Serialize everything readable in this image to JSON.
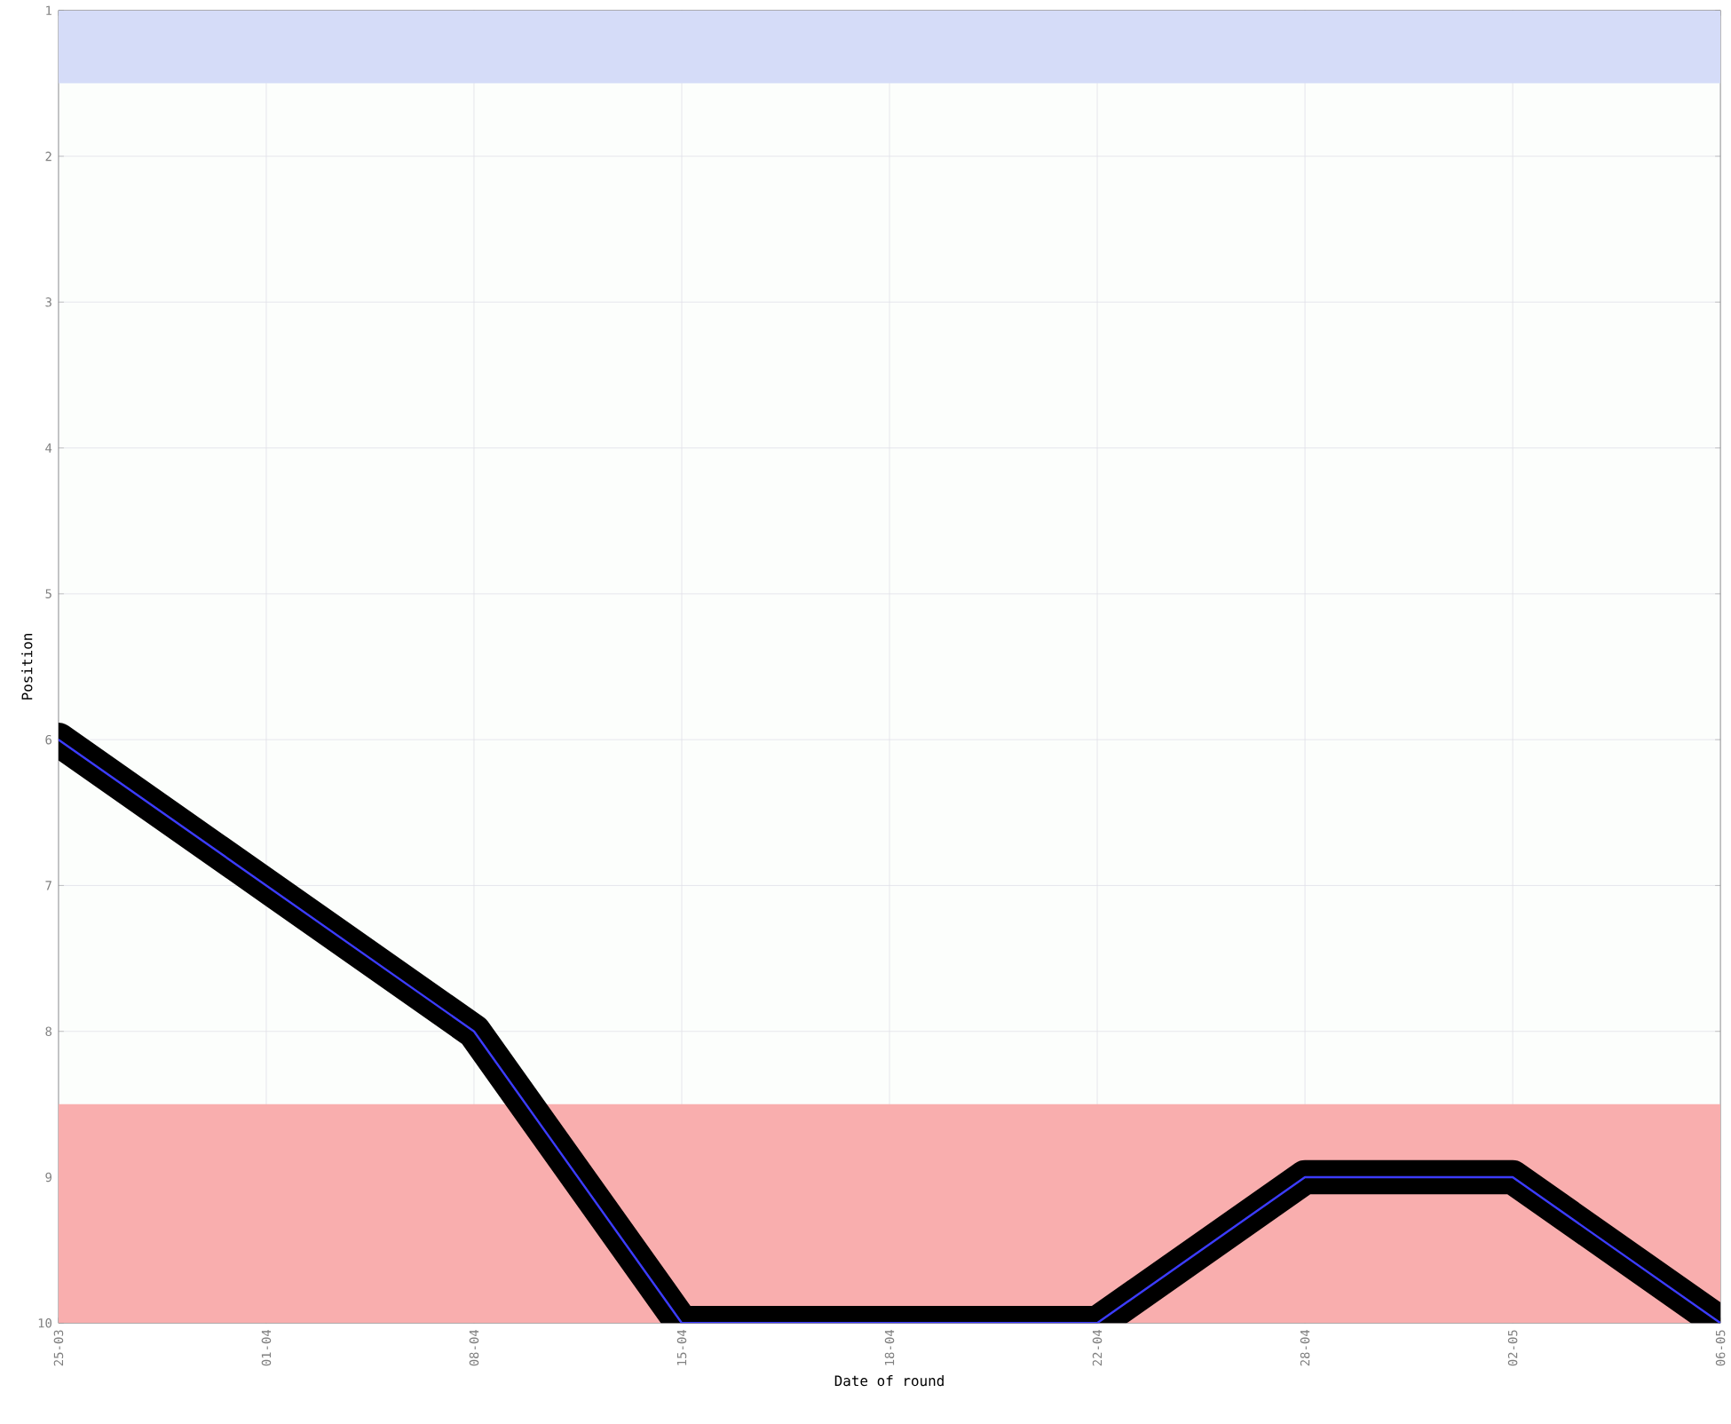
{
  "chart_data": {
    "type": "line",
    "xlabel": "Date of round",
    "ylabel": "Position",
    "categories": [
      "25-03",
      "01-04",
      "08-04",
      "15-04",
      "18-04",
      "22-04",
      "28-04",
      "02-05",
      "06-05"
    ],
    "series": [
      {
        "color": "#000000",
        "values": [
          6,
          7,
          8,
          10,
          10,
          10,
          9,
          9,
          10
        ]
      }
    ],
    "ylim": [
      10,
      1
    ],
    "yticks": [
      1,
      2,
      3,
      4,
      5,
      6,
      7,
      8,
      9,
      10
    ],
    "bands": [
      {
        "axis": "y",
        "from": 1,
        "to": 1.5,
        "color": "#d5dcf8"
      },
      {
        "axis": "y",
        "from": 8.5,
        "to": 10,
        "color": "#f9aeae"
      }
    ],
    "grid": true,
    "marker": "none"
  }
}
